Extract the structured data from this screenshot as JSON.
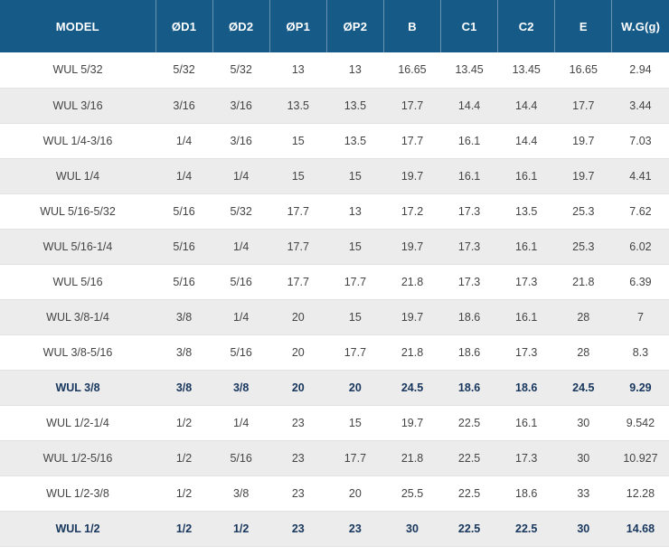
{
  "table": {
    "columns": [
      "MODEL",
      "ØD1",
      "ØD2",
      "ØP1",
      "ØP2",
      "B",
      "C1",
      "C2",
      "E",
      "W.G(g)"
    ],
    "rows": [
      {
        "highlight": false,
        "cells": [
          "WUL 5/32",
          "5/32",
          "5/32",
          "13",
          "13",
          "16.65",
          "13.45",
          "13.45",
          "16.65",
          "2.94"
        ]
      },
      {
        "highlight": false,
        "cells": [
          "WUL 3/16",
          "3/16",
          "3/16",
          "13.5",
          "13.5",
          "17.7",
          "14.4",
          "14.4",
          "17.7",
          "3.44"
        ]
      },
      {
        "highlight": false,
        "cells": [
          "WUL 1/4-3/16",
          "1/4",
          "3/16",
          "15",
          "13.5",
          "17.7",
          "16.1",
          "14.4",
          "19.7",
          "7.03"
        ]
      },
      {
        "highlight": false,
        "cells": [
          "WUL 1/4",
          "1/4",
          "1/4",
          "15",
          "15",
          "19.7",
          "16.1",
          "16.1",
          "19.7",
          "4.41"
        ]
      },
      {
        "highlight": false,
        "cells": [
          "WUL 5/16-5/32",
          "5/16",
          "5/32",
          "17.7",
          "13",
          "17.2",
          "17.3",
          "13.5",
          "25.3",
          "7.62"
        ]
      },
      {
        "highlight": false,
        "cells": [
          "WUL 5/16-1/4",
          "5/16",
          "1/4",
          "17.7",
          "15",
          "19.7",
          "17.3",
          "16.1",
          "25.3",
          "6.02"
        ]
      },
      {
        "highlight": false,
        "cells": [
          "WUL 5/16",
          "5/16",
          "5/16",
          "17.7",
          "17.7",
          "21.8",
          "17.3",
          "17.3",
          "21.8",
          "6.39"
        ]
      },
      {
        "highlight": false,
        "cells": [
          "WUL 3/8-1/4",
          "3/8",
          "1/4",
          "20",
          "15",
          "19.7",
          "18.6",
          "16.1",
          "28",
          "7"
        ]
      },
      {
        "highlight": false,
        "cells": [
          "WUL 3/8-5/16",
          "3/8",
          "5/16",
          "20",
          "17.7",
          "21.8",
          "18.6",
          "17.3",
          "28",
          "8.3"
        ]
      },
      {
        "highlight": true,
        "cells": [
          "WUL 3/8",
          "3/8",
          "3/8",
          "20",
          "20",
          "24.5",
          "18.6",
          "18.6",
          "24.5",
          "9.29"
        ]
      },
      {
        "highlight": false,
        "cells": [
          "WUL 1/2-1/4",
          "1/2",
          "1/4",
          "23",
          "15",
          "19.7",
          "22.5",
          "16.1",
          "30",
          "9.542"
        ]
      },
      {
        "highlight": false,
        "cells": [
          "WUL 1/2-5/16",
          "1/2",
          "5/16",
          "23",
          "17.7",
          "21.8",
          "22.5",
          "17.3",
          "30",
          "10.927"
        ]
      },
      {
        "highlight": false,
        "cells": [
          "WUL 1/2-3/8",
          "1/2",
          "3/8",
          "23",
          "20",
          "25.5",
          "22.5",
          "18.6",
          "33",
          "12.28"
        ]
      },
      {
        "highlight": true,
        "cells": [
          "WUL 1/2",
          "1/2",
          "1/2",
          "23",
          "23",
          "30",
          "22.5",
          "22.5",
          "30",
          "14.68"
        ]
      }
    ],
    "colors": {
      "header_bg": "#165a88",
      "row_alt_bg": "#ececec",
      "body_text": "#444444",
      "highlight_text": "#17365d"
    }
  }
}
